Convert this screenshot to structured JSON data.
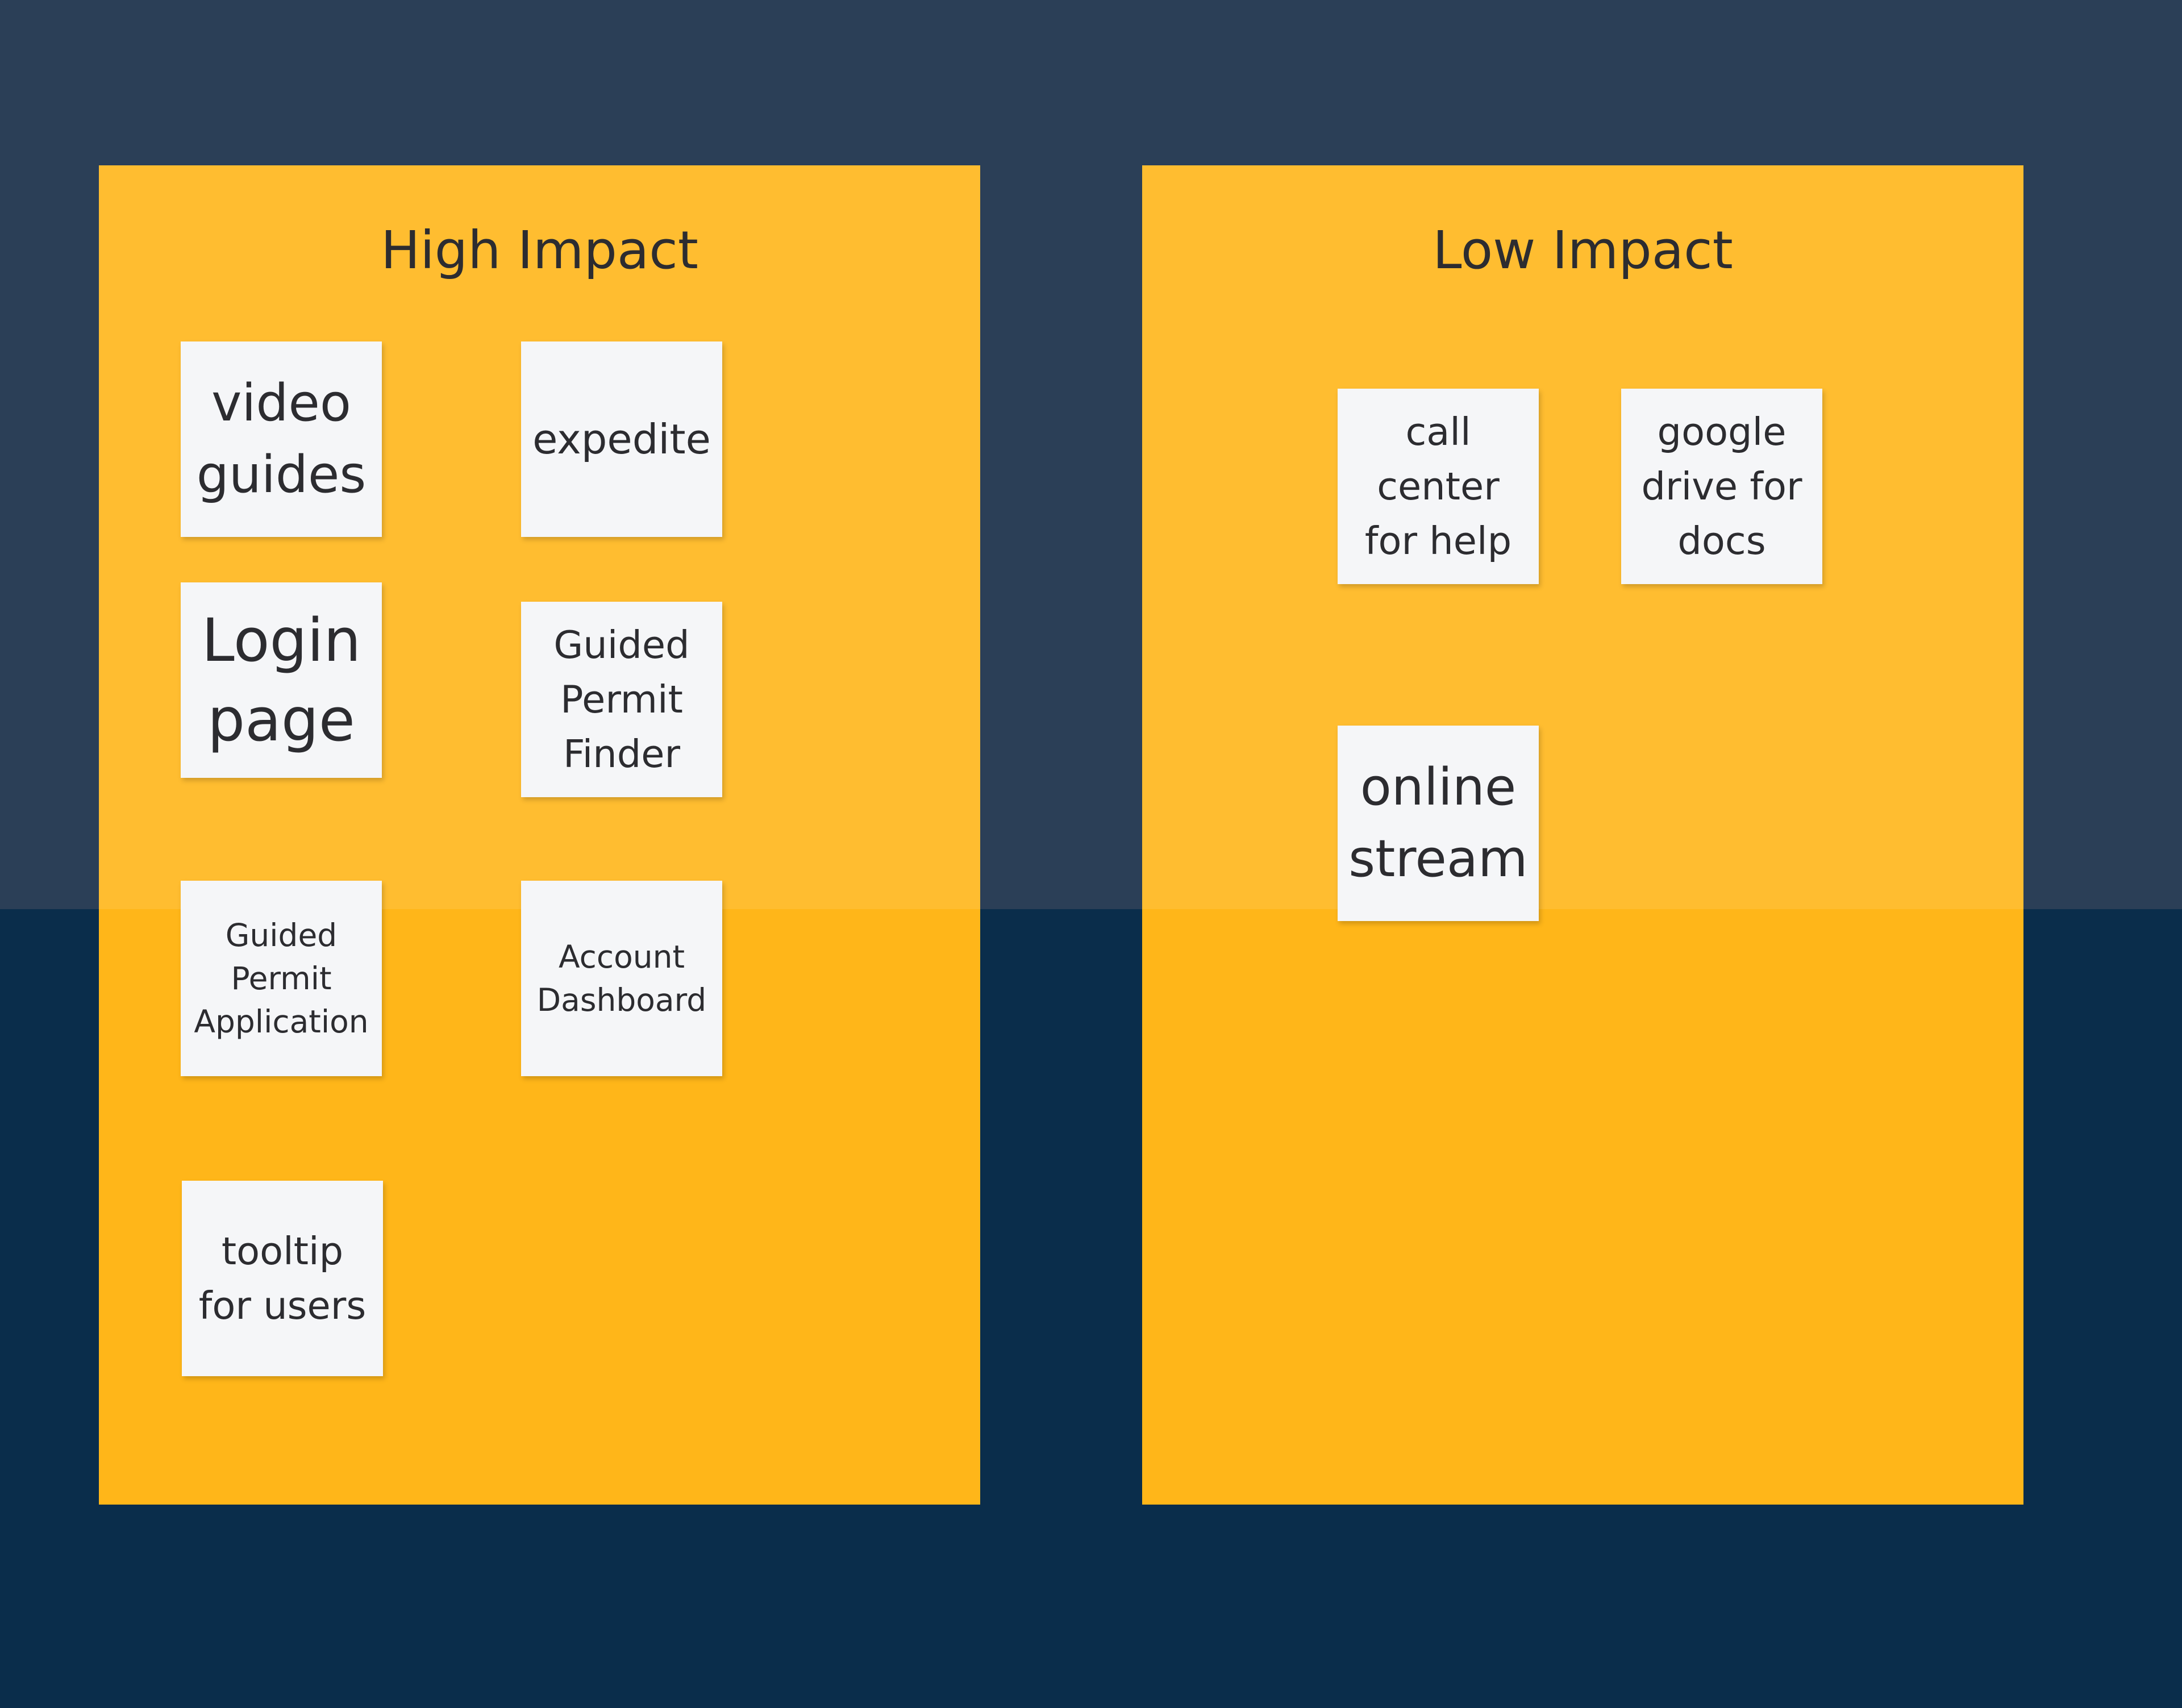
{
  "colors": {
    "background_top": "#2b3f57",
    "background_bottom": "#0a2d4b",
    "panel": "#ffb619",
    "note": "#f5f6f8",
    "text": "#2c2c30"
  },
  "high_impact": {
    "title": "High Impact",
    "notes": [
      "video guides",
      "expedite",
      "Login page",
      "Guided Permit Finder",
      "Guided Permit Application",
      "Account Dashboard",
      "tooltip for users"
    ]
  },
  "low_impact": {
    "title": "Low Impact",
    "notes": [
      "call center for help",
      "google drive for docs",
      "online stream"
    ]
  }
}
